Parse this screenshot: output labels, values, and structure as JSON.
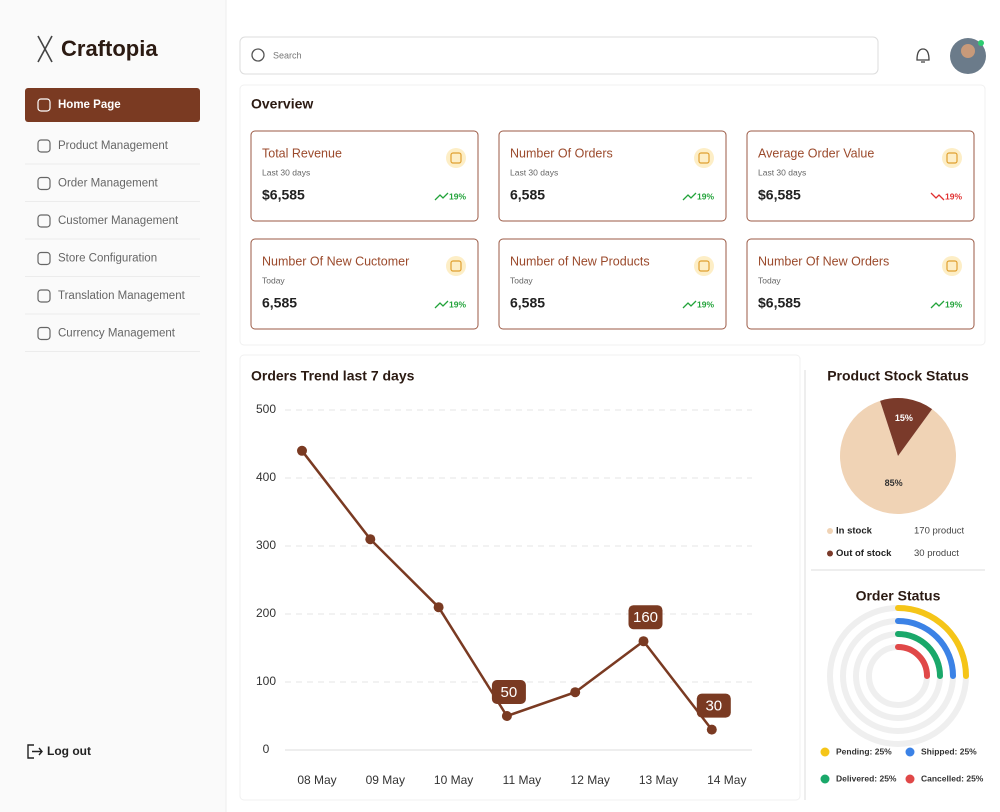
{
  "brand": "Craftopia",
  "search_placeholder": "Search",
  "nav": {
    "items": [
      "Home Page",
      "Product Management",
      "Order Management",
      "Customer Management",
      "Store Configuration",
      "Translation Management",
      "Currency Management"
    ]
  },
  "logout": "Log out",
  "overview": {
    "title": "Overview",
    "cards": [
      {
        "title": "Total Revenue",
        "period": "Last 30 days",
        "value": "$6,585",
        "change": "19%",
        "trend": "up"
      },
      {
        "title": "Number Of Orders",
        "period": "Last 30 days",
        "value": "6,585",
        "change": "19%",
        "trend": "up"
      },
      {
        "title": "Average Order Value",
        "period": "Last 30 days",
        "value": "$6,585",
        "change": "19%",
        "trend": "down"
      },
      {
        "title": "Number Of New Cuctomer",
        "period": "Today",
        "value": "6,585",
        "change": "19%",
        "trend": "up"
      },
      {
        "title": "Number of New Products",
        "period": "Today",
        "value": "6,585",
        "change": "19%",
        "trend": "up"
      },
      {
        "title": "Number Of New Orders",
        "period": "Today",
        "value": "$6,585",
        "change": "19%",
        "trend": "up"
      }
    ]
  },
  "chart_data": [
    {
      "type": "line",
      "title": "Orders Trend  last 7 days",
      "categories": [
        "08 May",
        "09 May",
        "10 May",
        "11 May",
        "12 May",
        "13 May",
        "14 May"
      ],
      "values": [
        440,
        310,
        210,
        50,
        85,
        160,
        30
      ],
      "value_labels": [
        null,
        null,
        null,
        "50",
        null,
        "160",
        "30"
      ],
      "color": "#7a3a22",
      "ylim": [
        0,
        500
      ],
      "yticks": [
        0,
        100,
        200,
        300,
        400,
        500
      ],
      "grid": true
    },
    {
      "type": "pie",
      "title": "Product Stock Status",
      "categories": [
        "In stock",
        "Out of stock"
      ],
      "values": [
        85,
        15
      ],
      "value_labels": [
        "85%",
        "15%"
      ],
      "colors": [
        "#f0d3b5",
        "#7a3a2a"
      ],
      "details": [
        "170 product",
        "30 product"
      ]
    },
    {
      "type": "radial",
      "title": "Order Status",
      "legend": [
        "Pending: 25%",
        "Shipped: 25%",
        "Delivered: 25%",
        "Cancelled: 25%"
      ],
      "values": [
        25,
        25,
        25,
        25
      ],
      "colors": [
        "#f5c518",
        "#3b82e6",
        "#1aa86a",
        "#e04848"
      ]
    }
  ]
}
